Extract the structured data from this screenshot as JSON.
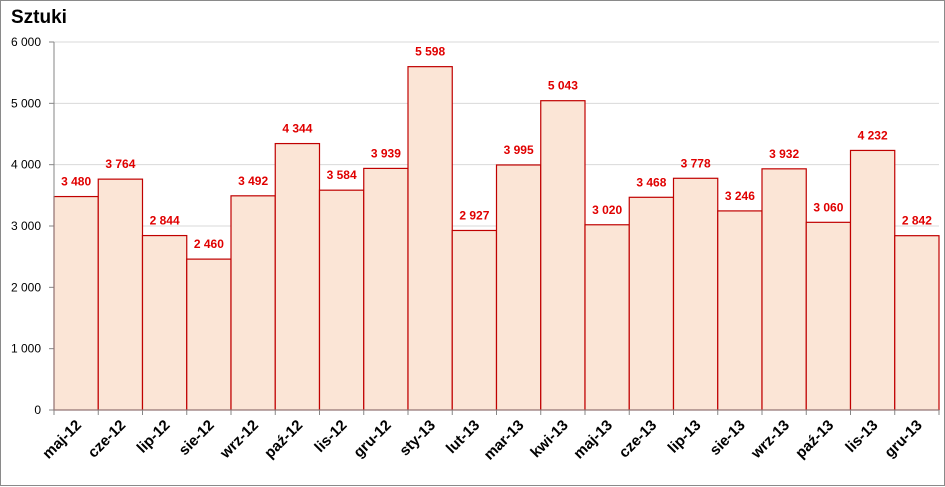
{
  "chart_data": {
    "type": "bar",
    "title": "Sztuki",
    "xlabel": "",
    "ylabel": "Sztuki",
    "ylim": [
      0,
      6000
    ],
    "y_ticks": [
      0,
      1000,
      2000,
      3000,
      4000,
      5000,
      6000
    ],
    "y_tick_labels": [
      "0",
      "1 000",
      "2 000",
      "3 000",
      "4 000",
      "5 000",
      "6 000"
    ],
    "grid": true,
    "legend": "none",
    "categories": [
      "maj-12",
      "cze-12",
      "lip-12",
      "sie-12",
      "wrz-12",
      "paź-12",
      "lis-12",
      "gru-12",
      "sty-13",
      "lut-13",
      "mar-13",
      "kwi-13",
      "maj-13",
      "cze-13",
      "lip-13",
      "sie-13",
      "wrz-13",
      "paź-13",
      "lis-13",
      "gru-13"
    ],
    "values": [
      3480,
      3764,
      2844,
      2460,
      3492,
      4344,
      3584,
      3939,
      5598,
      2927,
      3995,
      5043,
      3020,
      3468,
      3778,
      3246,
      3932,
      3060,
      4232,
      2842
    ],
    "data_labels": [
      "3 480",
      "3 764",
      "2 844",
      "2 460",
      "3 492",
      "4 344",
      "3 584",
      "3 939",
      "5 598",
      "2 927",
      "3 995",
      "5 043",
      "3 020",
      "3 468",
      "3 778",
      "3 246",
      "3 932",
      "3 060",
      "4 232",
      "2 842"
    ],
    "colors": {
      "bar_fill": "#fbe5d6",
      "bar_stroke": "#c00000",
      "label": "#e00000",
      "grid": "#d9d9d9",
      "axis": "#868686"
    }
  }
}
